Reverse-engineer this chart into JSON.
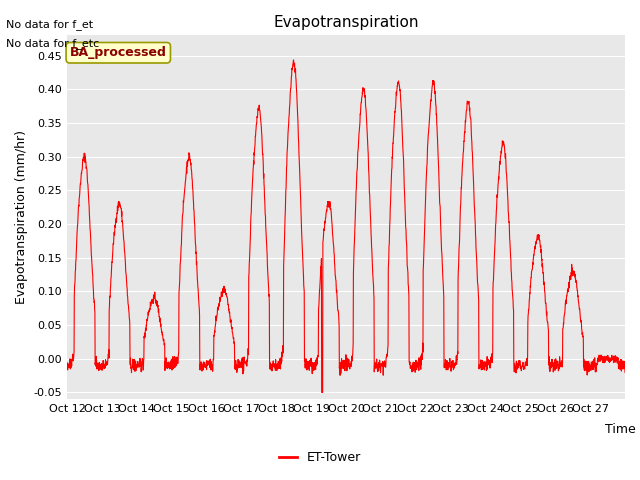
{
  "title": "Evapotranspiration",
  "ylabel": "Evapotranspiration (mm/hr)",
  "xlabel": "Time",
  "ylim": [
    -0.06,
    0.48
  ],
  "line_color": "#FF0000",
  "line_width": 0.8,
  "bg_color": "#E8E8E8",
  "fig_bg_color": "#FFFFFF",
  "legend_label": "ET-Tower",
  "legend_color": "#FF0000",
  "top_left_text1": "No data for f_et",
  "top_left_text2": "No data for f_etc",
  "box_label": "BA_processed",
  "box_bg": "#FFFFCC",
  "box_edge": "#999900",
  "xtick_labels": [
    "Oct 12",
    "Oct 13",
    "Oct 14",
    "Oct 15",
    "Oct 16",
    "Oct 17",
    "Oct 18",
    "Oct 19",
    "Oct 20",
    "Oct 21",
    "Oct 22",
    "Oct 23",
    "Oct 24",
    "Oct 25",
    "Oct 26",
    "Oct 27",
    ""
  ],
  "ytick_values": [
    -0.05,
    0.0,
    0.05,
    0.1,
    0.15,
    0.2,
    0.25,
    0.3,
    0.35,
    0.4,
    0.45
  ],
  "grid_color": "#FFFFFF",
  "n_days": 16,
  "pts_per_day": 144,
  "daily_peaks": [
    0.3,
    0.23,
    0.09,
    0.3,
    0.1,
    0.37,
    0.44,
    0.23,
    0.4,
    0.41,
    0.41,
    0.38,
    0.32,
    0.18,
    0.13,
    0.0
  ]
}
